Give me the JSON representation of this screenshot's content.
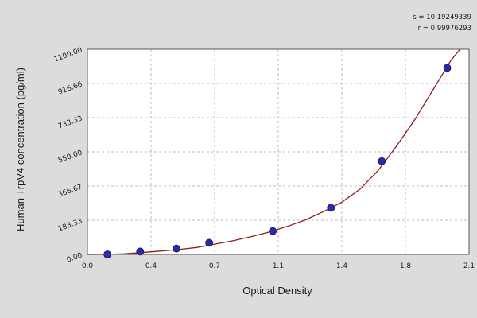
{
  "chart_data": {
    "type": "scatter",
    "title": "",
    "xlabel": "Optical Density",
    "ylabel": "Human TrpV4 concentration (pg/ml)",
    "xlim": [
      0.0,
      2.1
    ],
    "ylim": [
      0.0,
      1100.0
    ],
    "x_ticks": [
      0.0,
      0.35,
      0.7,
      1.05,
      1.4,
      1.75,
      2.1
    ],
    "x_tick_labels": [
      "0.0",
      "0.4",
      "0.7",
      "1.1",
      "1.4",
      "1.8",
      "2.1"
    ],
    "y_ticks": [
      0.0,
      183.33,
      366.67,
      550.0,
      733.33,
      916.66,
      1100.0
    ],
    "y_tick_labels": [
      "0.00",
      "183.33",
      "366.67",
      "550.00",
      "733.33",
      "916.66",
      "1100.00"
    ],
    "grid": true,
    "stats": [
      "s = 10.19249339",
      "r = 0.99976293"
    ],
    "series": [
      {
        "x": [
          0.11,
          0.29,
          0.49,
          0.67,
          1.02,
          1.34,
          1.62,
          1.98
        ],
        "y": [
          0.0,
          15.6,
          31.2,
          62.5,
          125.0,
          250.0,
          500.0,
          1000.0
        ]
      }
    ],
    "fit_curve": {
      "x": [
        0.0,
        0.1,
        0.2,
        0.3,
        0.4,
        0.5,
        0.6,
        0.7,
        0.8,
        0.9,
        1.0,
        1.1,
        1.2,
        1.3,
        1.4,
        1.5,
        1.6,
        1.7,
        1.8,
        1.9,
        2.0,
        2.05
      ],
      "y": [
        -12,
        -4,
        3,
        10,
        18,
        26,
        37,
        55,
        73,
        95,
        120,
        150,
        185,
        230,
        280,
        350,
        450,
        580,
        720,
        880,
        1040,
        1110
      ]
    },
    "colors": {
      "background": "#dcdcdc",
      "plot_area": "#ffffff",
      "grid": "#bcbcbc",
      "curve": "#8b1f1f",
      "marker": "#2a2aa8"
    }
  }
}
